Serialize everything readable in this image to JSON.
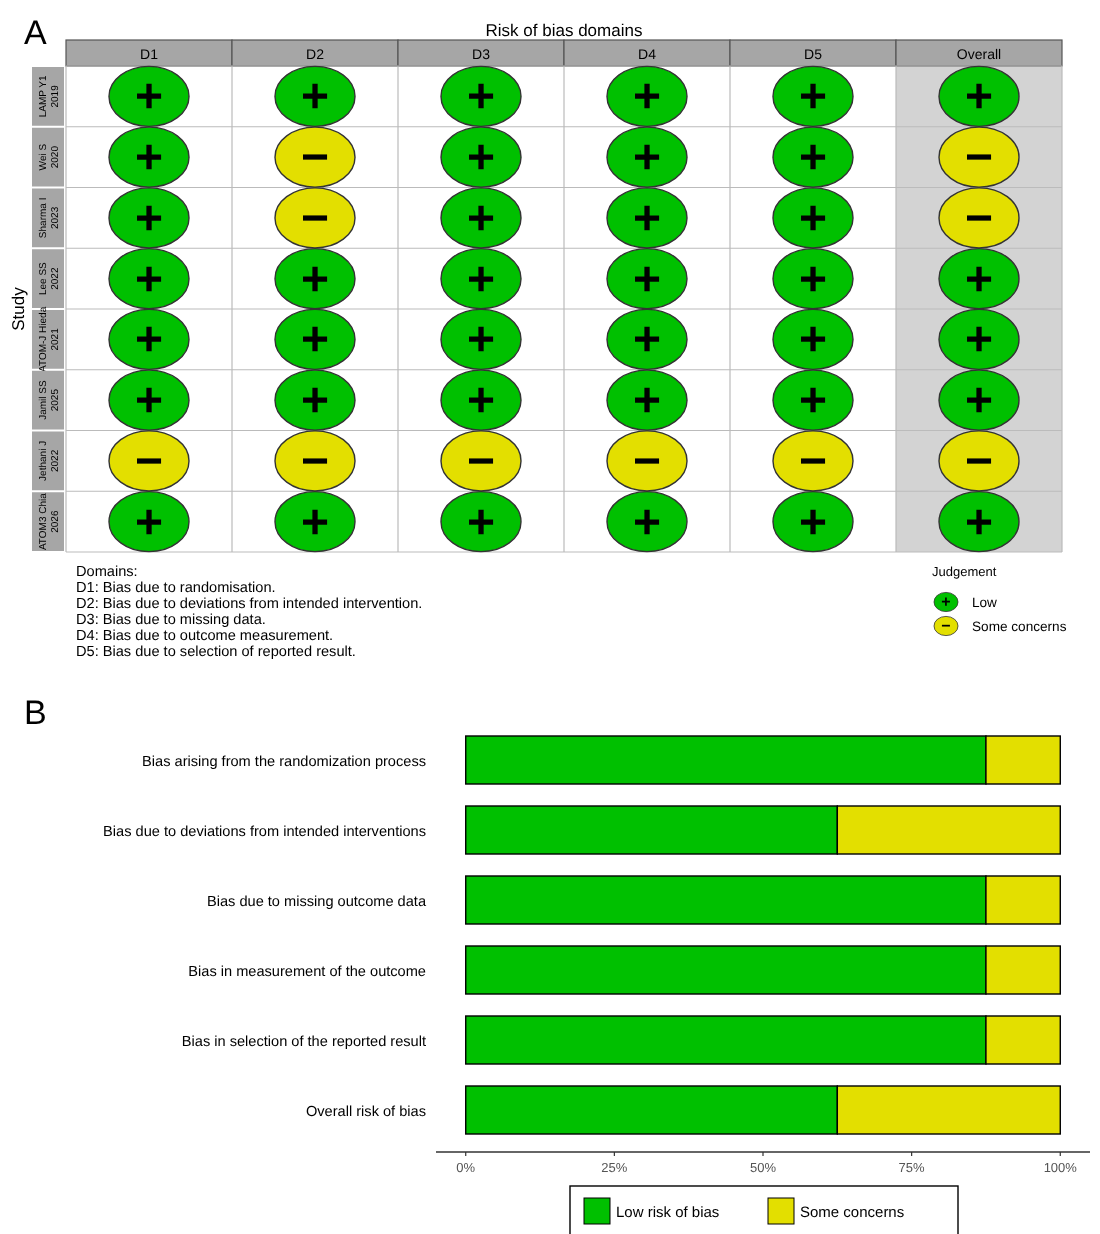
{
  "chart_data": [
    {
      "type": "heatmap",
      "xlabel": "Risk of bias domains",
      "ylabel": "Study",
      "legend_title": "Judgement",
      "categories": [
        "D1",
        "D2",
        "D3",
        "D4",
        "D5",
        "Overall"
      ],
      "y_categories": [
        "LAMP Y1 2019",
        "Wei S 2020",
        "Sharma I 2023",
        "Lee SS 2022",
        "ATOM-J Hieda 2021",
        "Jamil SS 2025",
        "Jethani J 2022",
        "ATOM3 Chia 2026"
      ],
      "colors": [
        [
          "#00c000",
          "#00c000",
          "#00c000",
          "#00c000",
          "#00c000",
          "#00c000"
        ],
        [
          "#00c000",
          "#e3df00",
          "#00c000",
          "#00c000",
          "#00c000",
          "#e3df00"
        ],
        [
          "#00c000",
          "#e3df00",
          "#00c000",
          "#00c000",
          "#00c000",
          "#e3df00"
        ],
        [
          "#00c000",
          "#00c000",
          "#00c000",
          "#00c000",
          "#00c000",
          "#00c000"
        ],
        [
          "#00c000",
          "#00c000",
          "#00c000",
          "#00c000",
          "#00c000",
          "#00c000"
        ],
        [
          "#00c000",
          "#00c000",
          "#00c000",
          "#00c000",
          "#00c000",
          "#00c000"
        ],
        [
          "#e3df00",
          "#e3df00",
          "#e3df00",
          "#e3df00",
          "#e3df00",
          "#e3df00"
        ],
        [
          "#00c000",
          "#00c000",
          "#00c000",
          "#00c000",
          "#00c000",
          "#00c000"
        ]
      ],
      "cells": [
        [
          "+",
          "+",
          "+",
          "+",
          "+",
          "+"
        ],
        [
          "+",
          "−",
          "+",
          "+",
          "+",
          "−"
        ],
        [
          "+",
          "−",
          "+",
          "+",
          "+",
          "−"
        ],
        [
          "+",
          "+",
          "+",
          "+",
          "+",
          "+"
        ],
        [
          "+",
          "+",
          "+",
          "+",
          "+",
          "+"
        ],
        [
          "+",
          "+",
          "+",
          "+",
          "+",
          "+"
        ],
        [
          "−",
          "−",
          "−",
          "−",
          "−",
          "−"
        ],
        [
          "+",
          "+",
          "+",
          "+",
          "+",
          "+"
        ]
      ],
      "annotations": [
        "A",
        "Domains:",
        "D1: Bias due to randomisation.",
        "D2: Bias due to deviations from intended intervention.",
        "D3: Bias due to missing data.",
        "D4: Bias due to outcome measurement.",
        "D5: Bias due to selection of reported result.",
        "Low",
        "Some concerns"
      ]
    },
    {
      "type": "bar",
      "orientation": "horizontal",
      "stacked": true,
      "legend": "bottom",
      "grid": false,
      "categories": [
        "Bias arising from the randomization process",
        "Bias due to deviations from intended interventions",
        "Bias due to missing outcome data",
        "Bias in measurement of the outcome",
        "Bias in selection of the reported result",
        "Overall risk of bias"
      ],
      "series": [
        {
          "name": "Low risk of bias",
          "color": "#00c000",
          "values": [
            87.5,
            62.5,
            87.5,
            87.5,
            87.5,
            62.5
          ]
        },
        {
          "name": "Some concerns",
          "color": "#e3df00",
          "values": [
            12.5,
            37.5,
            12.5,
            12.5,
            12.5,
            37.5
          ]
        }
      ],
      "xlim": [
        -5,
        105
      ],
      "xticks": [
        {
          "value": 0,
          "label": "0%"
        },
        {
          "value": 25,
          "label": "25%"
        },
        {
          "value": 50,
          "label": "50%"
        },
        {
          "value": 75,
          "label": "75%"
        },
        {
          "value": 100,
          "label": "100%"
        }
      ],
      "annotations": [
        "B"
      ]
    }
  ]
}
